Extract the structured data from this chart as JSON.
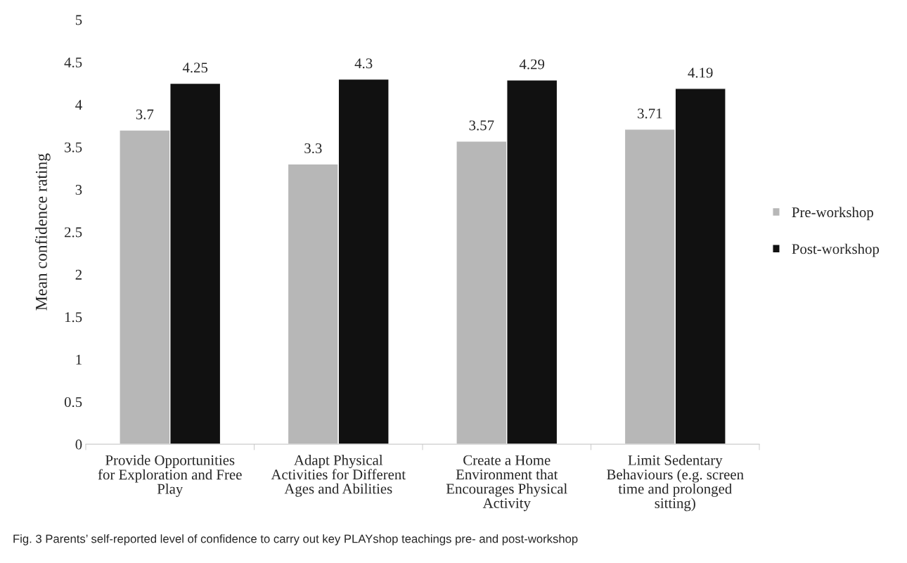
{
  "chart_data": {
    "type": "bar",
    "ylabel": "Mean confidence rating",
    "categories": [
      "Provide Opportunities for Exploration and Free Play",
      "Adapt Physical Activities for Different Ages and Abilities",
      "Create a Home Environment that Encourages Physical Activity",
      "Limit Sedentary Behaviours (e.g. screen time and prolonged sitting)"
    ],
    "series": [
      {
        "name": "Pre-workshop",
        "color": "#b7b7b7",
        "values": [
          3.7,
          3.3,
          3.57,
          3.71
        ]
      },
      {
        "name": "Post-workshop",
        "color": "#111111",
        "values": [
          4.25,
          4.3,
          4.29,
          4.19
        ]
      }
    ],
    "ylim": [
      0,
      5
    ],
    "yticks": [
      0,
      0.5,
      1,
      1.5,
      2,
      2.5,
      3,
      3.5,
      4,
      4.5,
      5
    ],
    "data_labels": true,
    "grid": false,
    "legend": "right",
    "annotations": [
      "Fig. 3 Parents’ self-reported level of confidence to carry out key PLAYshop teachings pre- and post-workshop"
    ]
  }
}
